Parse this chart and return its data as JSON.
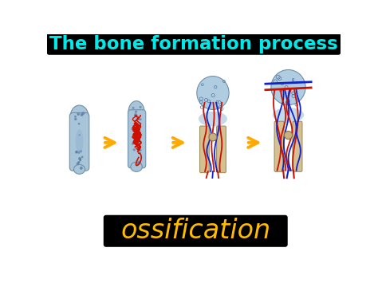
{
  "bg_color": "#ffffff",
  "title_text": "The bone formation process",
  "title_bg": "#000000",
  "title_color": "#00e8e8",
  "title_fontsize": 16.5,
  "word_text": "ossification",
  "word_bg": "#000000",
  "word_color": "#ffbb00",
  "word_fontsize": 24,
  "word_style": "italic",
  "arrow_color": "#ffaa00",
  "bone_fill": "#a8c4d8",
  "bone_edge": "#7090a8",
  "shaft_fill": "#d4c090",
  "shaft_edge": "#a09060",
  "red_vessel": "#cc1100",
  "blue_vessel": "#1122cc",
  "dot_color": "#5578a0",
  "circle_fill": "#c8b080",
  "circle_edge": "#907040"
}
